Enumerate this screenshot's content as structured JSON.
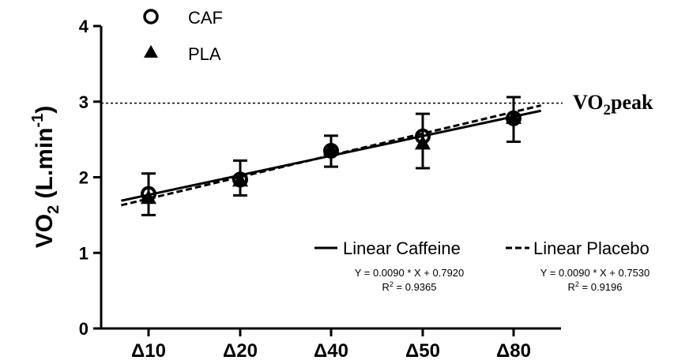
{
  "chart_data": {
    "type": "line",
    "ylabel": "VO",
    "ylabel_sub": "2",
    "ylabel_rest": " (L.min",
    "ylabel_sup": "-1",
    "ylabel_end": ")",
    "ylim": [
      0,
      4
    ],
    "yticks": [
      0,
      1,
      2,
      3,
      4
    ],
    "yticklabels": [
      "0",
      "1",
      "2",
      "3",
      "4"
    ],
    "categories": [
      "Δ10",
      "Δ20",
      "Δ40",
      "Δ50",
      "Δ80"
    ],
    "series": [
      {
        "name": "CAF",
        "marker": "open-circle",
        "values": [
          1.78,
          1.97,
          2.35,
          2.54,
          2.78
        ],
        "error_low": [
          1.5,
          1.76,
          2.14,
          2.12,
          2.47
        ],
        "error_high": [
          2.05,
          2.22,
          2.55,
          2.84,
          3.06
        ]
      },
      {
        "name": "PLA",
        "marker": "filled-triangle",
        "values": [
          1.72,
          1.95,
          2.36,
          2.44,
          2.78
        ],
        "error_low": [
          1.5,
          1.76,
          2.14,
          2.12,
          2.47
        ],
        "error_high": [
          2.05,
          2.22,
          2.55,
          2.84,
          3.06
        ]
      }
    ],
    "fits": [
      {
        "name": "Linear Caffeine",
        "style": "solid",
        "equation": "Y = 0.0090 * X + 0.7920",
        "r2_label": "R",
        "r2_sup": "2",
        "r2_value": " = 0.9365",
        "start": [
          0.7,
          1.69
        ],
        "end": [
          5.3,
          2.88
        ]
      },
      {
        "name": "Linear Placebo",
        "style": "dashed",
        "equation": "Y = 0.0090 * X + 0.7530",
        "r2_label": "R",
        "r2_sup": "2",
        "r2_value": " = 0.9196",
        "start": [
          0.7,
          1.63
        ],
        "end": [
          5.3,
          2.95
        ]
      }
    ],
    "reference_line": {
      "y": 2.98,
      "label": "VO",
      "label_sub": "2",
      "label_rest": "peak",
      "style": "dotted"
    },
    "legend": [
      "CAF",
      "PLA"
    ],
    "legend_position": "top-left",
    "grid": false
  }
}
